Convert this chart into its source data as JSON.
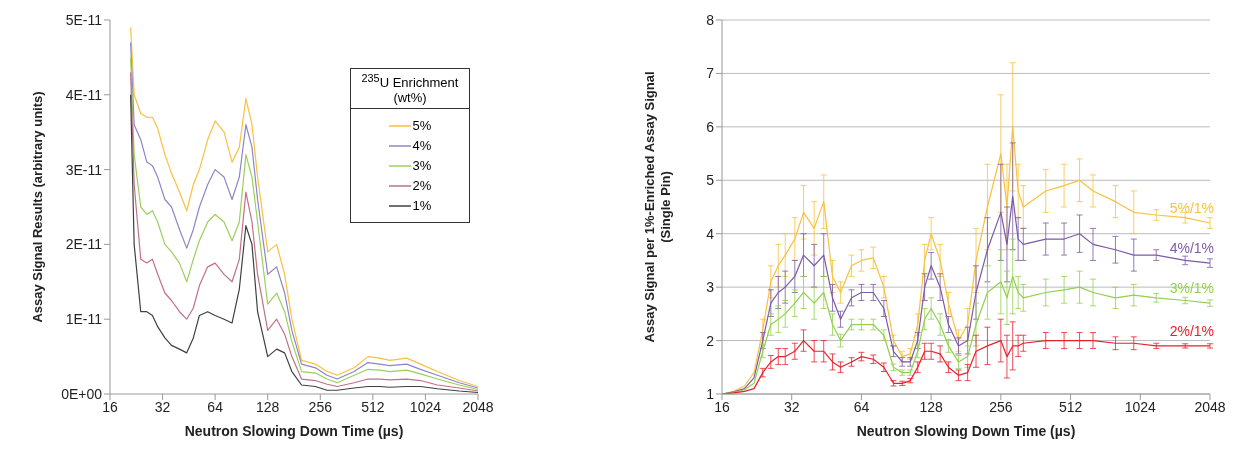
{
  "chart_data": [
    {
      "type": "line",
      "xlabel": "Neutron Slowing Down Time (µs)",
      "ylabel": "Assay Signal Results (arbitrary units)",
      "legend_title": "$^{235}$U Enrichment (wt%)",
      "legend": "top right",
      "log": "x",
      "grid": false,
      "marker": "none",
      "x": [
        21,
        22,
        24,
        26,
        28,
        30,
        33,
        36,
        40,
        44,
        48,
        52,
        58,
        64,
        72,
        80,
        88,
        96,
        104,
        112,
        128,
        144,
        160,
        176,
        200,
        240,
        280,
        320,
        400,
        480,
        560,
        640,
        800,
        960,
        1200,
        1600,
        2048
      ],
      "xlim": [
        16,
        2048
      ],
      "xticks": [
        16,
        32,
        64,
        128,
        256,
        512,
        1024,
        2048
      ],
      "ylim": [
        0,
        5e-11
      ],
      "yticks": [
        {
          "value": 0,
          "label": "0E+00"
        },
        {
          "value": 1e-11,
          "label": "1E-11"
        },
        {
          "value": 2e-11,
          "label": "2E-11"
        },
        {
          "value": 3e-11,
          "label": "3E-11"
        },
        {
          "value": 4e-11,
          "label": "4E-11"
        },
        {
          "value": 5e-11,
          "label": "5E-11"
        }
      ],
      "series": [
        {
          "name": "5%",
          "color": "#f8c13f",
          "values": [
            4.9e-11,
            4e-11,
            3.75e-11,
            3.7e-11,
            3.7e-11,
            3.55e-11,
            3.2e-11,
            2.95e-11,
            2.7e-11,
            2.45e-11,
            2.8e-11,
            3e-11,
            3.4e-11,
            3.65e-11,
            3.5e-11,
            3.1e-11,
            3.3e-11,
            3.95e-11,
            3.6e-11,
            2.9e-11,
            1.9e-11,
            2e-11,
            1.6e-11,
            1e-11,
            4.5e-12,
            4e-12,
            3e-12,
            2.5e-12,
            3.5e-12,
            5e-12,
            4.8e-12,
            4.5e-12,
            4.8e-12,
            4e-12,
            3e-12,
            1.8e-12,
            1e-12
          ]
        },
        {
          "name": "4%",
          "color": "#8c86c4",
          "values": [
            4.7e-11,
            3.6e-11,
            3.4e-11,
            3.1e-11,
            3.05e-11,
            2.9e-11,
            2.6e-11,
            2.5e-11,
            2.2e-11,
            1.95e-11,
            2.2e-11,
            2.5e-11,
            2.8e-11,
            3e-11,
            2.9e-11,
            2.6e-11,
            2.9e-11,
            3.6e-11,
            3.3e-11,
            2.6e-11,
            1.6e-11,
            1.7e-11,
            1.35e-11,
            8.5e-12,
            4e-12,
            3.5e-12,
            2.5e-12,
            2e-12,
            3e-12,
            4.2e-12,
            4e-12,
            3.8e-12,
            4e-12,
            3.3e-12,
            2.5e-12,
            1.5e-12,
            8e-13
          ]
        },
        {
          "name": "3%",
          "color": "#9bcf5c",
          "values": [
            4.5e-11,
            3.2e-11,
            2.5e-11,
            2.4e-11,
            2.45e-11,
            2.3e-11,
            2e-11,
            1.9e-11,
            1.75e-11,
            1.5e-11,
            1.8e-11,
            2.05e-11,
            2.3e-11,
            2.4e-11,
            2.3e-11,
            2.05e-11,
            2.3e-11,
            3.2e-11,
            2.9e-11,
            2.3e-11,
            1.2e-11,
            1.35e-11,
            1.1e-11,
            7e-12,
            3e-12,
            2.8e-12,
            2e-12,
            1.5e-12,
            2.5e-12,
            3.3e-12,
            3.2e-12,
            3e-12,
            3.2e-12,
            2.7e-12,
            2e-12,
            1.2e-12,
            6e-13
          ]
        },
        {
          "name": "2%",
          "color": "#c07088",
          "values": [
            4.3e-11,
            2.8e-11,
            1.8e-11,
            1.75e-11,
            1.8e-11,
            1.6e-11,
            1.35e-11,
            1.25e-11,
            1.1e-11,
            1e-11,
            1.15e-11,
            1.45e-11,
            1.7e-11,
            1.75e-11,
            1.6e-11,
            1.5e-11,
            1.8e-11,
            2.7e-11,
            2.3e-11,
            1.6e-11,
            8.5e-12,
            1e-11,
            8e-12,
            5e-12,
            2e-12,
            1.8e-12,
            1.3e-12,
            1e-12,
            1.5e-12,
            2e-12,
            2e-12,
            1.9e-12,
            2e-12,
            1.8e-12,
            1.2e-12,
            8e-13,
            4e-13
          ]
        },
        {
          "name": "1%",
          "color": "#404040",
          "values": [
            4e-11,
            2e-11,
            1.1e-11,
            1.1e-11,
            1.05e-11,
            9e-12,
            7.5e-12,
            6.5e-12,
            6e-12,
            5.5e-12,
            7.5e-12,
            1.05e-11,
            1.1e-11,
            1.05e-11,
            1e-11,
            9.5e-12,
            1.4e-11,
            2.25e-11,
            2e-11,
            1.1e-11,
            5e-12,
            6e-12,
            5.5e-12,
            3e-12,
            1.2e-12,
            1e-12,
            5e-13,
            5e-13,
            8e-13,
            1e-12,
            1e-12,
            9e-13,
            1e-12,
            1e-12,
            7e-13,
            4e-13,
            2e-13
          ]
        }
      ]
    },
    {
      "type": "line",
      "xlabel": "Neutron Slowing Down Time (µs)",
      "ylabel": "Assay Signal per 1%-Enriched Assay Signal (Single Pin)",
      "legend": false,
      "log": "x",
      "grid": "y",
      "marker": "none",
      "x": [
        16,
        18,
        20,
        22,
        24,
        26,
        28,
        30,
        33,
        36,
        40,
        44,
        48,
        52,
        58,
        64,
        72,
        80,
        88,
        96,
        104,
        112,
        120,
        128,
        140,
        152,
        168,
        184,
        200,
        224,
        256,
        272,
        288,
        304,
        320,
        400,
        480,
        560,
        640,
        800,
        960,
        1200,
        1600,
        2048
      ],
      "xlim": [
        16,
        2048
      ],
      "xticks": [
        16,
        32,
        64,
        128,
        256,
        512,
        1024,
        2048
      ],
      "ylim": [
        1,
        8
      ],
      "yticks": [
        1,
        2,
        3,
        4,
        5,
        6,
        7,
        8
      ],
      "series": [
        {
          "name": "5%/1%",
          "color": "#f8c13f",
          "values": [
            1,
            1.05,
            1.15,
            1.4,
            2.2,
            3.1,
            3.4,
            3.6,
            3.9,
            4.4,
            4.1,
            4.6,
            3.2,
            2.9,
            3.4,
            3.5,
            3.55,
            3.0,
            2.0,
            1.7,
            1.75,
            2.3,
            3.5,
            4.0,
            3.5,
            2.7,
            2.0,
            2.3,
            3.5,
            4.5,
            5.5,
            4.5,
            6.0,
            4.8,
            4.5,
            4.8,
            4.9,
            5.0,
            4.8,
            4.6,
            4.4,
            4.35,
            4.3,
            4.2
          ],
          "errors": [
            null,
            null,
            null,
            null,
            0.2,
            0.3,
            0.4,
            0.4,
            0.4,
            0.5,
            0.5,
            0.5,
            0.3,
            0.2,
            0.2,
            0.2,
            0.2,
            0.2,
            0.1,
            0.1,
            0.1,
            0.2,
            0.3,
            0.3,
            0.3,
            0.2,
            0.2,
            0.3,
            0.6,
            0.8,
            1.1,
            0.8,
            1.2,
            0.5,
            0.4,
            0.4,
            0.4,
            0.4,
            0.3,
            0.3,
            0.4,
            0.1,
            0.1,
            0.1
          ]
        },
        {
          "name": "4%/1%",
          "color": "#7b5aa6",
          "values": [
            1,
            1.04,
            1.1,
            1.3,
            2.0,
            2.7,
            2.9,
            3.0,
            3.2,
            3.6,
            3.4,
            3.6,
            2.8,
            2.4,
            2.8,
            2.9,
            2.9,
            2.6,
            1.8,
            1.6,
            1.6,
            2.0,
            3.0,
            3.4,
            3.0,
            2.3,
            1.9,
            2.0,
            2.9,
            3.7,
            4.4,
            3.8,
            4.7,
            3.9,
            3.8,
            3.9,
            3.9,
            4.0,
            3.8,
            3.7,
            3.6,
            3.6,
            3.5,
            3.45
          ],
          "errors": [
            null,
            null,
            null,
            null,
            0.15,
            0.25,
            0.3,
            0.3,
            0.3,
            0.4,
            0.4,
            0.4,
            0.25,
            0.15,
            0.15,
            0.15,
            0.15,
            0.15,
            0.1,
            0.08,
            0.08,
            0.15,
            0.25,
            0.25,
            0.25,
            0.15,
            0.15,
            0.25,
            0.5,
            0.6,
            0.9,
            0.7,
            1.0,
            0.4,
            0.3,
            0.3,
            0.3,
            0.35,
            0.3,
            0.25,
            0.3,
            0.1,
            0.08,
            0.08
          ]
        },
        {
          "name": "3%/1%",
          "color": "#92d050",
          "values": [
            1,
            1.03,
            1.08,
            1.2,
            1.8,
            2.3,
            2.4,
            2.5,
            2.7,
            2.9,
            2.7,
            2.9,
            2.3,
            2.0,
            2.3,
            2.3,
            2.3,
            2.1,
            1.5,
            1.4,
            1.4,
            1.8,
            2.4,
            2.6,
            2.3,
            1.9,
            1.6,
            1.7,
            2.3,
            2.9,
            3.1,
            2.8,
            3.2,
            2.9,
            2.8,
            2.9,
            2.95,
            3.0,
            2.9,
            2.8,
            2.85,
            2.8,
            2.75,
            2.7
          ],
          "errors": [
            null,
            null,
            null,
            null,
            0.12,
            0.2,
            0.25,
            0.25,
            0.25,
            0.3,
            0.3,
            0.3,
            0.2,
            0.12,
            0.1,
            0.1,
            0.1,
            0.1,
            0.06,
            0.05,
            0.05,
            0.12,
            0.2,
            0.2,
            0.2,
            0.12,
            0.12,
            0.2,
            0.4,
            0.5,
            0.6,
            0.5,
            0.7,
            0.3,
            0.25,
            0.25,
            0.25,
            0.3,
            0.25,
            0.2,
            0.2,
            0.08,
            0.06,
            0.06
          ]
        },
        {
          "name": "2%/1%",
          "color": "#e8202a",
          "values": [
            1,
            1.02,
            1.05,
            1.1,
            1.4,
            1.6,
            1.7,
            1.7,
            1.8,
            2.0,
            1.8,
            1.8,
            1.6,
            1.5,
            1.6,
            1.7,
            1.65,
            1.5,
            1.2,
            1.2,
            1.25,
            1.5,
            1.8,
            1.8,
            1.75,
            1.5,
            1.35,
            1.4,
            1.8,
            1.9,
            2.0,
            1.7,
            1.9,
            1.9,
            1.95,
            2.0,
            2.0,
            2.0,
            2.0,
            1.95,
            1.95,
            1.9,
            1.9,
            1.9
          ],
          "errors": [
            null,
            null,
            null,
            null,
            0.08,
            0.12,
            0.15,
            0.15,
            0.15,
            0.2,
            0.2,
            0.2,
            0.15,
            0.1,
            0.08,
            0.08,
            0.08,
            0.08,
            0.05,
            0.04,
            0.04,
            0.1,
            0.15,
            0.15,
            0.15,
            0.1,
            0.1,
            0.15,
            0.3,
            0.35,
            0.4,
            0.4,
            0.45,
            0.2,
            0.15,
            0.15,
            0.15,
            0.15,
            0.15,
            0.12,
            0.12,
            0.05,
            0.04,
            0.04
          ]
        }
      ]
    }
  ]
}
